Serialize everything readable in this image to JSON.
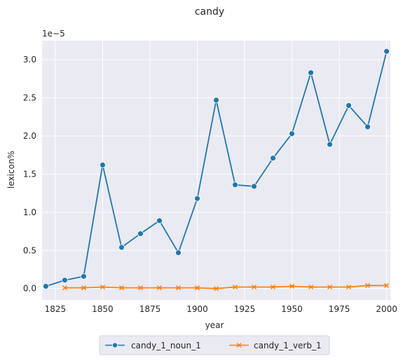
{
  "chart_data": {
    "type": "line",
    "title": "candy",
    "xlabel": "year",
    "ylabel": "lexicon%",
    "y_offset_label": "1e−5",
    "xlim": [
      1818,
      2002
    ],
    "ylim": [
      -0.15,
      3.25
    ],
    "x_ticks": [
      1825,
      1850,
      1875,
      1900,
      1925,
      1950,
      1975,
      2000
    ],
    "y_ticks": [
      0.0,
      0.5,
      1.0,
      1.5,
      2.0,
      2.5,
      3.0
    ],
    "grid": true,
    "legend_position": "bottom-center",
    "series": [
      {
        "name": "candy_1_noun_1",
        "color": "#1f77b4",
        "marker": "circle",
        "x": [
          1820,
          1830,
          1840,
          1850,
          1860,
          1870,
          1880,
          1890,
          1900,
          1910,
          1920,
          1930,
          1940,
          1950,
          1960,
          1970,
          1980,
          1990,
          2000
        ],
        "y": [
          0.03,
          0.11,
          0.16,
          1.62,
          0.54,
          0.72,
          0.89,
          0.47,
          1.18,
          2.47,
          1.36,
          1.34,
          1.71,
          2.03,
          2.83,
          1.89,
          2.4,
          2.12,
          3.11
        ]
      },
      {
        "name": "candy_1_verb_1",
        "color": "#ff7f0e",
        "marker": "x",
        "x": [
          1830,
          1840,
          1850,
          1860,
          1870,
          1880,
          1890,
          1900,
          1910,
          1920,
          1930,
          1940,
          1950,
          1960,
          1970,
          1980,
          1990,
          2000
        ],
        "y": [
          0.01,
          0.01,
          0.02,
          0.01,
          0.01,
          0.01,
          0.01,
          0.01,
          0.0,
          0.02,
          0.02,
          0.02,
          0.03,
          0.02,
          0.02,
          0.02,
          0.04,
          0.04
        ]
      }
    ]
  }
}
